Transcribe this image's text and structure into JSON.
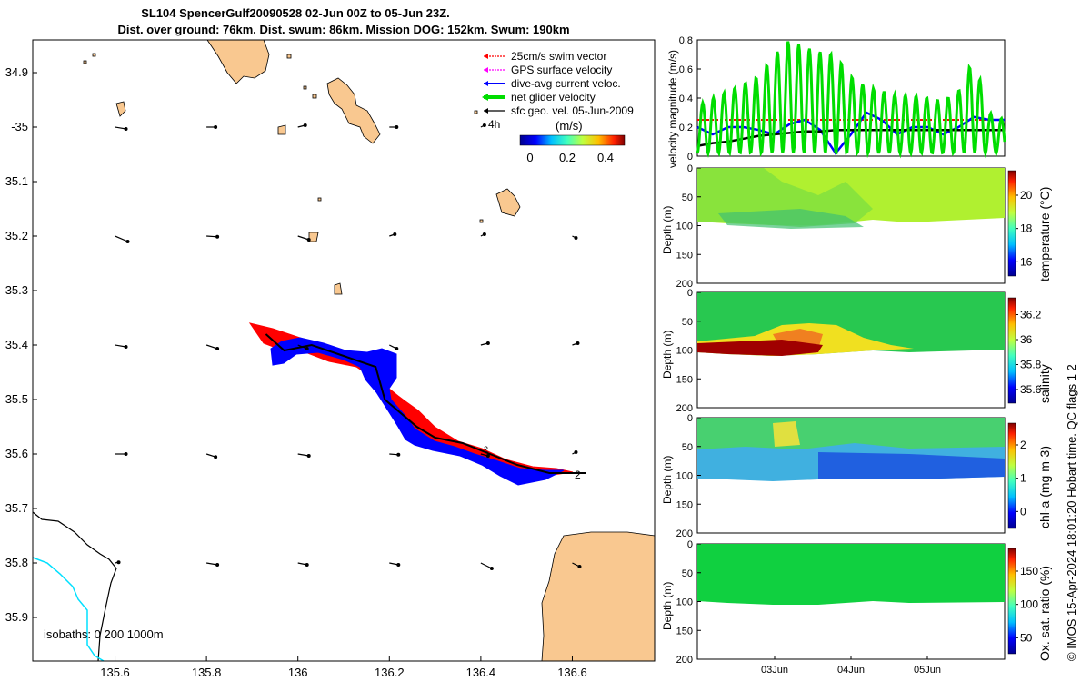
{
  "title": {
    "line1": "SL104 SpencerGulf20090528 02-Jun 00Z to 05-Jun 23Z.",
    "line2": "Dist. over ground: 76km. Dist. swum: 86km. Mission DOG: 152km. Swum: 190km"
  },
  "colors": {
    "land": "#f9c890",
    "glider_red": "#ff0000",
    "current_blue": "#0000ff",
    "net_green": "#00dd00",
    "gps_magenta": "#ff00ff",
    "isobath_cyan": "#00e0ff"
  },
  "map": {
    "lat_ticks": [
      "34.9",
      "-35",
      "35.1",
      "35.2",
      "35.3",
      "35.4",
      "35.5",
      "35.6",
      "35.7",
      "35.8",
      "35.9"
    ],
    "lon_ticks": [
      "135.6",
      "135.8",
      "136",
      "136.2",
      "136.4",
      "136.6"
    ],
    "legend": [
      "25cm/s swim vector",
      "GPS surface velocity",
      "dive-avg current veloc.",
      "net glider velocity",
      "sfc geo. vel. 05-Jun-2009"
    ],
    "time_label": "4h",
    "colorbar_title": "(m/s)",
    "colorbar_ticks": [
      "0",
      "0.2",
      "0.4"
    ],
    "isobath_label": "isobaths: 0   200  1000m",
    "track_labels": [
      "2",
      "2"
    ],
    "vectors": [
      {
        "lon": 135.6,
        "lat": -35.0,
        "u": 0.3,
        "v": -0.05
      },
      {
        "lon": 135.8,
        "lat": -35.0,
        "u": 0.25,
        "v": 0.0
      },
      {
        "lon": 136.0,
        "lat": -35.0,
        "u": 0.2,
        "v": 0.05
      },
      {
        "lon": 136.2,
        "lat": -35.0,
        "u": 0.2,
        "v": 0.0
      },
      {
        "lon": 136.4,
        "lat": -35.0,
        "u": 0.1,
        "v": 0.05
      },
      {
        "lon": 135.6,
        "lat": -35.2,
        "u": 0.35,
        "v": -0.15
      },
      {
        "lon": 135.8,
        "lat": -35.2,
        "u": 0.3,
        "v": -0.02
      },
      {
        "lon": 136.0,
        "lat": -35.2,
        "u": 0.3,
        "v": -0.1
      },
      {
        "lon": 136.2,
        "lat": -35.2,
        "u": 0.15,
        "v": 0.05
      },
      {
        "lon": 136.4,
        "lat": -35.2,
        "u": 0.1,
        "v": 0.05
      },
      {
        "lon": 136.6,
        "lat": -35.2,
        "u": 0.1,
        "v": -0.05
      },
      {
        "lon": 135.6,
        "lat": -35.4,
        "u": 0.3,
        "v": -0.05
      },
      {
        "lon": 135.8,
        "lat": -35.4,
        "u": 0.3,
        "v": -0.1
      },
      {
        "lon": 136.0,
        "lat": -35.4,
        "u": 0.25,
        "v": -0.1
      },
      {
        "lon": 136.2,
        "lat": -35.4,
        "u": 0.2,
        "v": -0.1
      },
      {
        "lon": 136.4,
        "lat": -35.4,
        "u": 0.2,
        "v": 0.05
      },
      {
        "lon": 136.6,
        "lat": -35.4,
        "u": 0.15,
        "v": 0.05
      },
      {
        "lon": 135.6,
        "lat": -35.6,
        "u": 0.3,
        "v": 0.0
      },
      {
        "lon": 135.8,
        "lat": -35.6,
        "u": 0.25,
        "v": -0.08
      },
      {
        "lon": 136.0,
        "lat": -35.6,
        "u": 0.3,
        "v": -0.05
      },
      {
        "lon": 136.2,
        "lat": -35.6,
        "u": 0.25,
        "v": -0.02
      },
      {
        "lon": 136.4,
        "lat": -35.6,
        "u": 0.2,
        "v": -0.05
      },
      {
        "lon": 136.6,
        "lat": -35.6,
        "u": 0.1,
        "v": 0.05
      },
      {
        "lon": 135.6,
        "lat": -35.8,
        "u": 0.1,
        "v": 0.02
      },
      {
        "lon": 135.8,
        "lat": -35.8,
        "u": 0.3,
        "v": -0.05
      },
      {
        "lon": 136.0,
        "lat": -35.8,
        "u": 0.25,
        "v": -0.05
      },
      {
        "lon": 136.2,
        "lat": -35.8,
        "u": 0.25,
        "v": -0.05
      },
      {
        "lon": 136.4,
        "lat": -35.8,
        "u": 0.3,
        "v": -0.15
      },
      {
        "lon": 136.6,
        "lat": -35.8,
        "u": 0.2,
        "v": -0.1
      }
    ],
    "track": [
      [
        135.93,
        -35.38
      ],
      [
        135.97,
        -35.41
      ],
      [
        136.03,
        -35.4
      ],
      [
        136.1,
        -35.42
      ],
      [
        136.17,
        -35.44
      ],
      [
        136.19,
        -35.5
      ],
      [
        136.26,
        -35.55
      ],
      [
        136.3,
        -35.57
      ],
      [
        136.36,
        -35.58
      ],
      [
        136.42,
        -35.6
      ],
      [
        136.48,
        -35.62
      ],
      [
        136.55,
        -35.635
      ],
      [
        136.63,
        -35.635
      ]
    ]
  },
  "chart_data": [
    {
      "type": "line",
      "title": "",
      "ylabel": "velocity magnitude (m/s)",
      "ylim": [
        0,
        0.8
      ],
      "y_ticks": [
        "0",
        "0.2",
        "0.4",
        "0.6",
        "0.8"
      ],
      "x": [
        0,
        0.2,
        0.4,
        0.6,
        0.8,
        1.0,
        1.2,
        1.4,
        1.6,
        1.8,
        2.0,
        2.2,
        2.4,
        2.6,
        2.8,
        3.0,
        3.2,
        3.4,
        3.6,
        3.8,
        4.0
      ],
      "series": [
        {
          "name": "25cm/s swim vector",
          "values": [
            0.25,
            0.25,
            0.25,
            0.25,
            0.25,
            0.25,
            0.25,
            0.25,
            0.25,
            0.25,
            0.25,
            0.25,
            0.25,
            0.25,
            0.25,
            0.25,
            0.25,
            0.25,
            0.25,
            0.25,
            0.25
          ]
        },
        {
          "name": "dive-avg current veloc.",
          "values": [
            0.2,
            0.15,
            0.2,
            0.2,
            0.18,
            0.15,
            0.22,
            0.25,
            0.18,
            0.02,
            0.15,
            0.3,
            0.25,
            0.15,
            0.2,
            0.2,
            0.15,
            0.2,
            0.27,
            0.25,
            0.25
          ]
        },
        {
          "name": "sfc geo. vel. 05-Jun-2009",
          "values": [
            0.07,
            0.09,
            0.1,
            0.12,
            0.14,
            0.15,
            0.16,
            0.17,
            0.17,
            0.18,
            0.18,
            0.18,
            0.18,
            0.18,
            0.18,
            0.18,
            0.18,
            0.18,
            0.18,
            0.18,
            0.18
          ]
        },
        {
          "name": "net glider velocity",
          "values": [
            0.35,
            0.4,
            0.45,
            0.5,
            0.55,
            0.7,
            0.8,
            0.75,
            0.72,
            0.7,
            0.55,
            0.48,
            0.45,
            0.42,
            0.42,
            0.4,
            0.38,
            0.45,
            0.68,
            0.3,
            0.25
          ]
        }
      ]
    },
    {
      "type": "heatmap",
      "ylabel": "Depth (m)",
      "y_ticks": [
        "0",
        "50",
        "100",
        "150",
        "200"
      ],
      "colorbar_label": "temperature (°C)",
      "colorbar_ticks": [
        "20",
        "18",
        "16"
      ]
    },
    {
      "type": "heatmap",
      "ylabel": "Depth (m)",
      "y_ticks": [
        "0",
        "50",
        "100",
        "150",
        "200"
      ],
      "colorbar_label": "salinity",
      "colorbar_ticks": [
        "36.2",
        "36",
        "35.8",
        "35.6"
      ]
    },
    {
      "type": "heatmap",
      "ylabel": "Depth (m)",
      "y_ticks": [
        "0",
        "50",
        "100",
        "150",
        "200"
      ],
      "colorbar_label": "chl-a (mg m-3)",
      "colorbar_ticks": [
        "2",
        "1",
        "0"
      ]
    },
    {
      "type": "heatmap",
      "ylabel": "Depth (m)",
      "y_ticks": [
        "0",
        "50",
        "100",
        "150",
        "200"
      ],
      "colorbar_label": "Ox. sat. ratio (%)",
      "colorbar_ticks": [
        "150",
        "100",
        "50"
      ],
      "x_ticks": [
        "03Jun",
        "04Jun",
        "05Jun"
      ]
    }
  ],
  "right_label": "© IMOS 15-Apr-2024 18:01:20 Hobart time. QC flags 1  2"
}
